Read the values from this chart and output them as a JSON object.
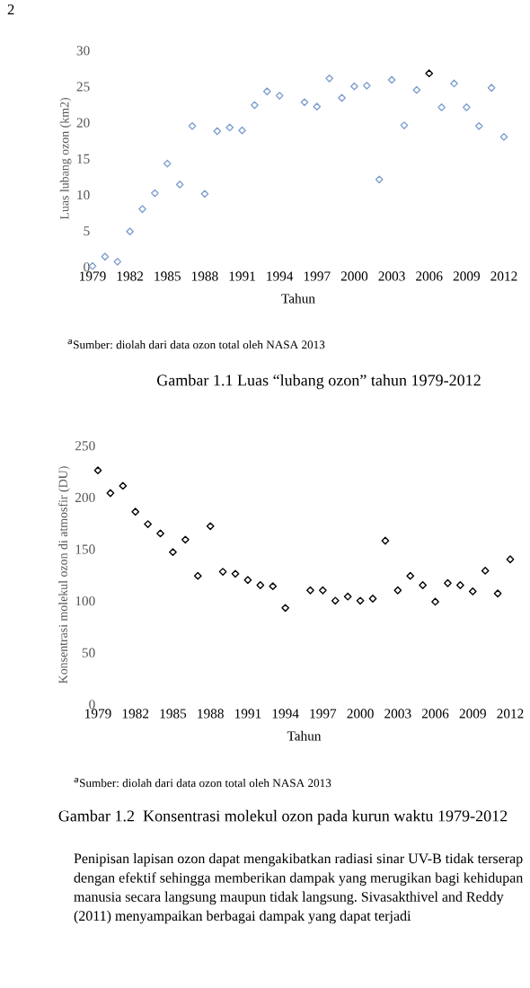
{
  "chart_data": [
    {
      "type": "scatter",
      "title": "Gambar 1.1 Luas “lubang ozon” tahun 1979-2012",
      "xlabel": "Tahun",
      "ylabel": "Luas lubang ozon (km2)",
      "annotations": [
        "2",
        "$^{a}$Sumber: diolah dari data ozon total oleh NASA 2013"
      ],
      "x": [
        1979,
        1980,
        1981,
        1982,
        1983,
        1984,
        1985,
        1986,
        1987,
        1988,
        1989,
        1990,
        1991,
        1992,
        1993,
        1994,
        1996,
        1997,
        1998,
        1999,
        2000,
        2001,
        2002,
        2003,
        2004,
        2005,
        2006,
        2007,
        2008,
        2009,
        2010,
        2011,
        2012
      ],
      "series": [
        {
          "values": [
            0.1,
            1.4,
            0.7,
            4.9,
            8.0,
            10.2,
            14.3,
            11.4,
            19.5,
            10.1,
            18.8,
            19.3,
            18.9,
            22.4,
            24.3,
            23.7,
            22.8,
            22.2,
            26.1,
            23.4,
            25.0,
            25.1,
            12.1,
            25.9,
            19.6,
            24.5,
            26.8,
            22.1,
            25.4,
            22.1,
            19.5,
            24.8,
            18.0
          ],
          "colors": [
            "#7f9fd0",
            "#7f9fd0",
            "#7f9fd0",
            "#7f9fd0",
            "#7f9fd0",
            "#7f9fd0",
            "#7f9fd0",
            "#7f9fd0",
            "#7f9fd0",
            "#7f9fd0",
            "#7f9fd0",
            "#7f9fd0",
            "#7f9fd0",
            "#7f9fd0",
            "#7f9fd0",
            "#7f9fd0",
            "#7f9fd0",
            "#7f9fd0",
            "#7f9fd0",
            "#7f9fd0",
            "#7f9fd0",
            "#7f9fd0",
            "#7f9fd0",
            "#7f9fd0",
            "#7f9fd0",
            "#7f9fd0",
            "#000000",
            "#7f9fd0",
            "#7f9fd0",
            "#7f9fd0",
            "#7f9fd0",
            "#7f9fd0",
            "#7f9fd0"
          ]
        }
      ],
      "xlim": [
        1979,
        2012
      ],
      "xticks": [
        1979,
        1982,
        1985,
        1988,
        1991,
        1994,
        1997,
        2000,
        2003,
        2006,
        2009,
        2012
      ],
      "ylim": [
        0,
        30
      ],
      "yticks": [
        0,
        5,
        10,
        15,
        20,
        25,
        30
      ],
      "marker": "diamond",
      "grid": false,
      "legend": false
    },
    {
      "type": "scatter",
      "title": "Gambar 1.2  Konsentrasi molekul ozon pada kurun waktu 1979-2012",
      "xlabel": "Tahun",
      "ylabel": "Konsentrasi molekul ozon di atmosfir (DU)",
      "annotations": [
        "$^{a}$Sumber: diolah dari data ozon total oleh NASA 2013",
        "Penipisan lapisan ozon dapat mengakibatkan radiasi sinar UV-B tidak terserap dengan efektif sehingga memberikan dampak yang merugikan bagi kehidupan manusia secara langsung maupun tidak langsung. Sivasakthivel and Reddy (2011) menyampaikan berbagai dampak yang dapat terjadi"
      ],
      "x": [
        1979,
        1980,
        1981,
        1982,
        1983,
        1984,
        1985,
        1986,
        1987,
        1988,
        1989,
        1990,
        1991,
        1992,
        1993,
        1994,
        1996,
        1997,
        1998,
        1999,
        2000,
        2001,
        2002,
        2003,
        2004,
        2005,
        2006,
        2007,
        2008,
        2009,
        2010,
        2011,
        2012
      ],
      "series": [
        {
          "values": [
            226,
            204,
            211,
            186,
            174,
            165,
            147,
            159,
            124,
            172,
            128,
            126,
            120,
            115,
            114,
            93,
            110,
            110,
            100,
            104,
            100,
            102,
            158,
            110,
            124,
            115,
            99,
            117,
            115,
            109,
            129,
            107,
            140
          ],
          "colors": [
            "#000000",
            "#000000",
            "#000000",
            "#000000",
            "#000000",
            "#000000",
            "#000000",
            "#000000",
            "#000000",
            "#000000",
            "#000000",
            "#000000",
            "#000000",
            "#000000",
            "#000000",
            "#000000",
            "#000000",
            "#000000",
            "#000000",
            "#000000",
            "#000000",
            "#000000",
            "#000000",
            "#000000",
            "#000000",
            "#000000",
            "#000000",
            "#000000",
            "#000000",
            "#000000",
            "#000000",
            "#000000",
            "#000000"
          ]
        }
      ],
      "xlim": [
        1979,
        2012
      ],
      "xticks": [
        1979,
        1982,
        1985,
        1988,
        1991,
        1994,
        1997,
        2000,
        2003,
        2006,
        2009,
        2012
      ],
      "ylim": [
        0,
        250
      ],
      "yticks": [
        0,
        50,
        100,
        150,
        200,
        250
      ],
      "marker": "diamond",
      "grid": false,
      "legend": false
    }
  ]
}
